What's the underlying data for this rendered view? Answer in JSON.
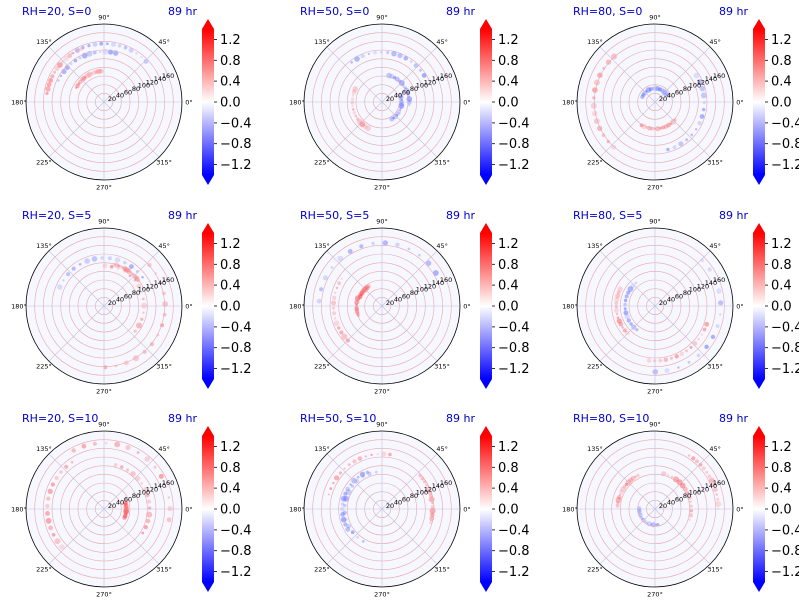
{
  "chart_data": {
    "type": "heatmap",
    "projection": "polar",
    "layout": "3x3",
    "time_label": "89 hr",
    "panel_titles": [
      "RH=20, S=0",
      "RH=50, S=0",
      "RH=80, S=0",
      "RH=20, S=5",
      "RH=50, S=5",
      "RH=80, S=5",
      "RH=20, S=10",
      "RH=50, S=10",
      "RH=80, S=10"
    ],
    "angular_ticks": [
      "0°",
      "45°",
      "90°",
      "135°",
      "180°",
      "225°",
      "270°",
      "315°"
    ],
    "radial_ticks": [
      20,
      40,
      60,
      80,
      100,
      120,
      140,
      160
    ],
    "radial_max": 180,
    "radial_label_angle_deg": 22.5,
    "colorbar": {
      "colormap": "bwr",
      "vmin": -1.4,
      "vmax": 1.4,
      "extend": "both",
      "ticks": [
        "1.2",
        "0.8",
        "0.4",
        "0.0",
        "−0.4",
        "−0.8",
        "−1.2"
      ],
      "tick_values": [
        1.2,
        0.8,
        0.4,
        0.0,
        -0.4,
        -0.8,
        -1.2
      ]
    },
    "grid": true,
    "colors": {
      "title": "#0000c8",
      "positive": "#ff0000",
      "negative": "#0000ff",
      "zero": "#ffffff"
    }
  }
}
